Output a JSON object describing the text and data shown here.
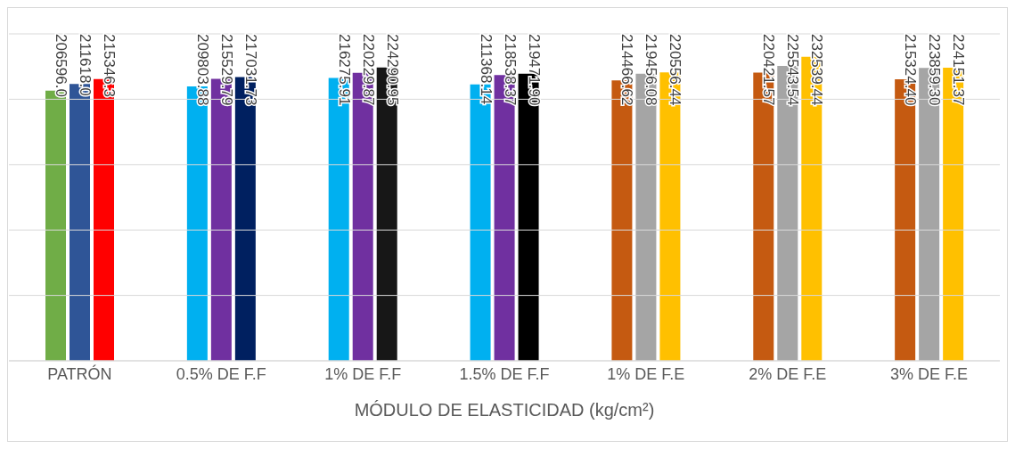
{
  "chart_data": {
    "type": "bar",
    "xlabel": "MÓDULO DE ELASTICIDAD (kg/cm²)",
    "categories": [
      "PATRÓN",
      "0.5% DE F.F",
      "1% DE F.F",
      "1.5% DE F.F",
      "1% DE F.E",
      "2% DE F.E",
      "3% DE F.E"
    ],
    "series": [
      {
        "colors": [
          "#70ad47",
          "#00b0f0",
          "#00b0f0",
          "#00b0f0",
          "#c55a11",
          "#c55a11",
          "#c55a11"
        ],
        "values": [
          206596.0,
          209803.88,
          216275.91,
          211368.14,
          214466.62,
          220421.57,
          215324.4
        ],
        "value_labels": [
          "206596.0",
          "209803.88",
          "216275.91",
          "211368.14",
          "214466.62",
          "220421.57",
          "215324.40"
        ]
      },
      {
        "colors": [
          "#2f5597",
          "#7030a0",
          "#7030a0",
          "#7030a0",
          "#a5a5a5",
          "#a5a5a5",
          "#a5a5a5"
        ],
        "values": [
          211618.0,
          215529.79,
          220229.87,
          218538.37,
          219456.08,
          225543.54,
          223859.3
        ],
        "value_labels": [
          "211618.0",
          "215529.79",
          "220229.87",
          "218538.37",
          "219456.08",
          "225543.54",
          "223859.30"
        ]
      },
      {
        "colors": [
          "#ff0000",
          "#002060",
          "#171717",
          "#000000",
          "#ffc000",
          "#ffc000",
          "#ffc000"
        ],
        "values": [
          215346.3,
          217031.73,
          224290.95,
          219471.9,
          220556.44,
          232539.44,
          224151.37
        ],
        "value_labels": [
          "215346.3",
          "217031.73",
          "224290.95",
          "219471.90",
          "220556.44",
          "232539.44",
          "224151.37"
        ]
      }
    ],
    "ylim": [
      0,
      250000
    ],
    "yticks": [
      {
        "value": 0,
        "label": null
      },
      {
        "value": 50000,
        "label": null
      },
      {
        "value": 100000,
        "label": null
      },
      {
        "value": 150000,
        "label": null
      },
      {
        "value": 200000,
        "label": null
      },
      {
        "value": 250000,
        "label": null
      }
    ],
    "grid": "y",
    "legend": false,
    "tick_labels": "x"
  }
}
